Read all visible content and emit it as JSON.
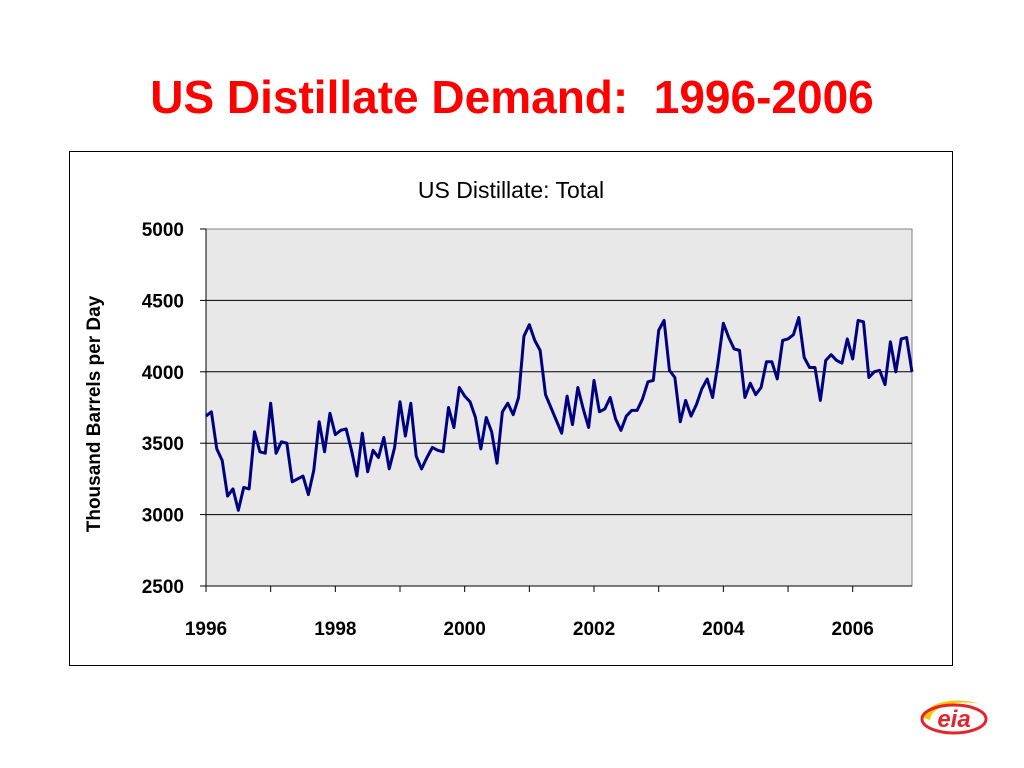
{
  "page": {
    "title": "US Distillate Demand:  1996-2006"
  },
  "logo": {
    "text": "eia"
  },
  "colors": {
    "title": "#ff0000",
    "series": "#000080",
    "plot_background": "#e8e8e8",
    "logo_red": "#e4242b",
    "logo_yellow": "#f7c600"
  },
  "chart_data": {
    "type": "line",
    "title": "US Distillate:  Total",
    "xlabel": "",
    "ylabel": "Thousand Barrels per Day",
    "xlim": [
      1996,
      2006.917
    ],
    "ylim": [
      2500,
      5000
    ],
    "x_ticks": [
      "1996",
      "1998",
      "2000",
      "2002",
      "2004",
      "2006"
    ],
    "y_ticks": [
      "2500",
      "3000",
      "3500",
      "4000",
      "4500",
      "5000"
    ],
    "grid": true,
    "legend": "none",
    "x_start": "1996-01",
    "x_step": "month",
    "series": [
      {
        "values": [
          3690,
          3720,
          3460,
          3380,
          3130,
          3180,
          3030,
          3190,
          3180,
          3580,
          3440,
          3430,
          3780,
          3430,
          3510,
          3500,
          3230,
          3250,
          3270,
          3140,
          3310,
          3650,
          3440,
          3710,
          3560,
          3590,
          3600,
          3450,
          3270,
          3570,
          3300,
          3450,
          3400,
          3540,
          3320,
          3470,
          3790,
          3550,
          3780,
          3410,
          3320,
          3400,
          3470,
          3450,
          3440,
          3750,
          3610,
          3890,
          3830,
          3790,
          3680,
          3460,
          3680,
          3580,
          3360,
          3720,
          3780,
          3700,
          3820,
          4250,
          4330,
          4220,
          4150,
          3840,
          3750,
          3660,
          3570,
          3830,
          3630,
          3890,
          3740,
          3610,
          3940,
          3720,
          3740,
          3820,
          3670,
          3590,
          3690,
          3730,
          3730,
          3810,
          3930,
          3940,
          4290,
          4360,
          4010,
          3960,
          3650,
          3800,
          3690,
          3770,
          3880,
          3950,
          3820,
          4060,
          4340,
          4240,
          4160,
          4150,
          3820,
          3920,
          3840,
          3890,
          4070,
          4070,
          3950,
          4220,
          4230,
          4260,
          4380,
          4100,
          4030,
          4030,
          3800,
          4080,
          4120,
          4080,
          4060,
          4230,
          4090,
          4360,
          4350,
          3960,
          4000,
          4010,
          3910,
          4210,
          4000,
          4230,
          4240,
          4000
        ]
      }
    ]
  }
}
